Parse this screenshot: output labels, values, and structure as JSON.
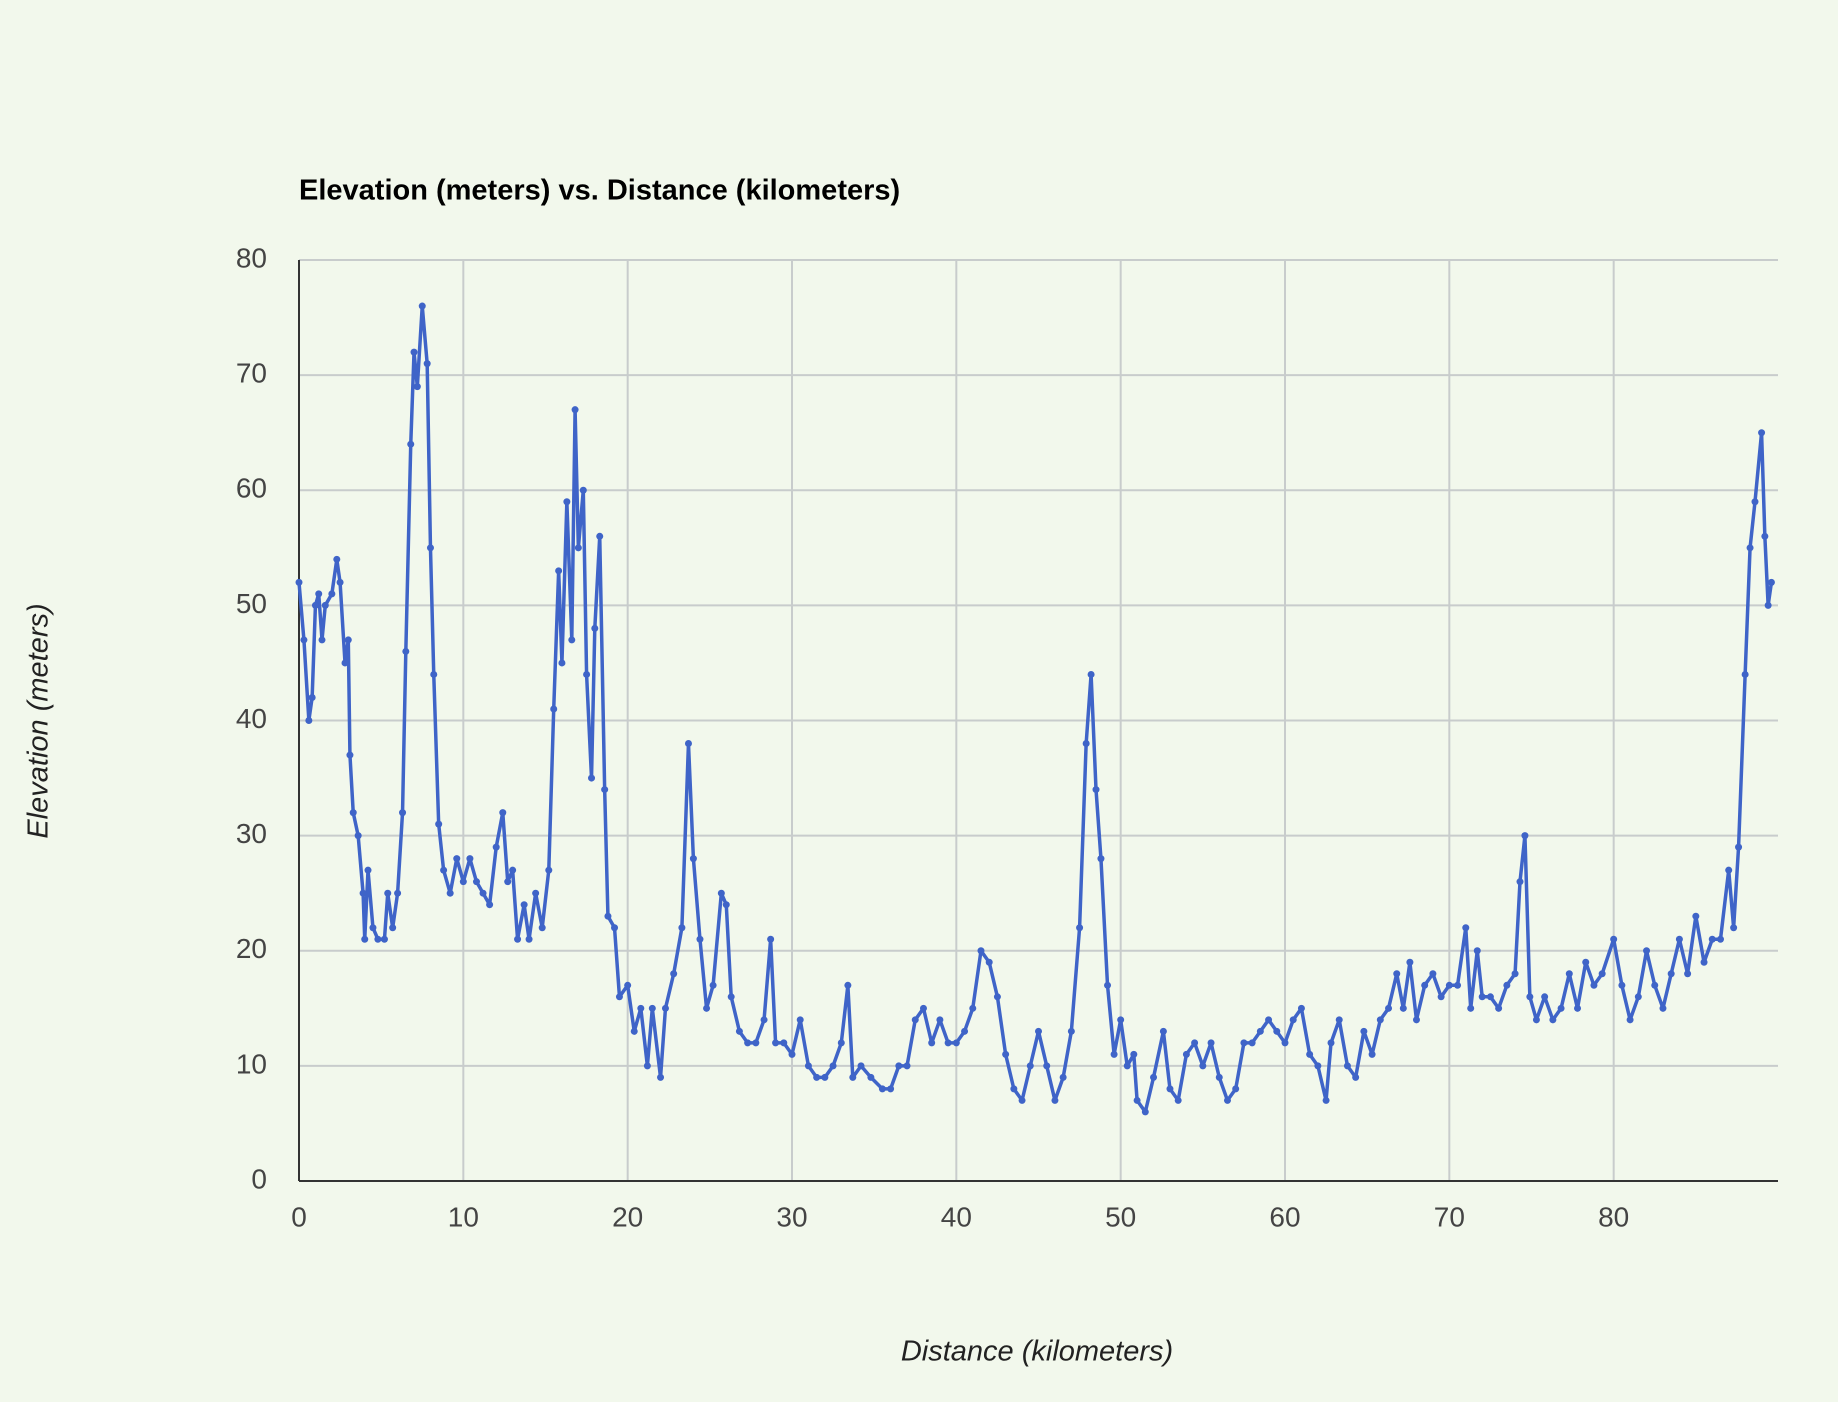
{
  "chart_data": {
    "type": "line",
    "title": "Elevation (meters) vs. Distance (kilometers)",
    "x_label": "Distance (kilometers)",
    "y_label": "Elevation (meters)",
    "xlim": [
      0,
      90
    ],
    "ylim": [
      0,
      80
    ],
    "xticks": [
      0,
      10,
      20,
      30,
      40,
      50,
      60,
      70,
      80
    ],
    "yticks": [
      0,
      10,
      20,
      30,
      40,
      50,
      60,
      70,
      80
    ],
    "grid": true,
    "markers": true,
    "x": [
      0,
      0.3,
      0.6,
      0.8,
      1,
      1.2,
      1.4,
      1.6,
      2,
      2.3,
      2.5,
      2.8,
      3,
      3.1,
      3.3,
      3.6,
      3.9,
      4,
      4.2,
      4.5,
      4.8,
      5.2,
      5.4,
      5.7,
      6,
      6.3,
      6.5,
      6.8,
      7,
      7.2,
      7.5,
      7.8,
      8,
      8.2,
      8.5,
      8.8,
      9.2,
      9.6,
      10,
      10.4,
      10.8,
      11.2,
      11.6,
      12,
      12.4,
      12.7,
      13,
      13.3,
      13.7,
      14,
      14.4,
      14.8,
      15.2,
      15.5,
      15.8,
      16,
      16.3,
      16.6,
      16.8,
      17,
      17.3,
      17.5,
      17.8,
      18,
      18.3,
      18.6,
      18.8,
      19.2,
      19.5,
      20,
      20.4,
      20.8,
      21.2,
      21.5,
      22,
      22.3,
      22.8,
      23.3,
      23.7,
      24,
      24.4,
      24.8,
      25.2,
      25.7,
      26,
      26.3,
      26.8,
      27.3,
      27.8,
      28.3,
      28.7,
      29,
      29.5,
      30,
      30.5,
      31,
      31.5,
      32,
      32.5,
      33,
      33.4,
      33.7,
      34.2,
      34.8,
      35.5,
      36,
      36.5,
      37,
      37.5,
      38,
      38.5,
      39,
      39.5,
      40,
      40.5,
      41,
      41.5,
      42,
      42.5,
      43,
      43.5,
      44,
      44.5,
      45,
      45.5,
      46,
      46.5,
      47,
      47.5,
      47.9,
      48.2,
      48.5,
      48.8,
      49.2,
      49.6,
      50,
      50.4,
      50.8,
      51,
      51.5,
      52,
      52.6,
      53,
      53.5,
      54,
      54.5,
      55,
      55.5,
      56,
      56.5,
      57,
      57.5,
      58,
      58.5,
      59,
      59.5,
      60,
      60.5,
      61,
      61.5,
      62,
      62.5,
      62.8,
      63.3,
      63.8,
      64.3,
      64.8,
      65.3,
      65.8,
      66.3,
      66.8,
      67.2,
      67.6,
      68,
      68.5,
      69,
      69.5,
      70,
      70.5,
      71,
      71.3,
      71.7,
      72,
      72.5,
      73,
      73.5,
      74,
      74.3,
      74.6,
      74.9,
      75.3,
      75.8,
      76.3,
      76.8,
      77.3,
      77.8,
      78.3,
      78.8,
      79.3,
      80,
      80.5,
      81,
      81.5,
      82,
      82.5,
      83,
      83.5,
      84,
      84.5,
      85,
      85.5,
      86,
      86.5,
      87,
      87.3,
      87.6,
      88,
      88.3,
      88.6,
      89,
      89.2,
      89.4,
      89.6
    ],
    "series": [
      {
        "name": "Elevation",
        "color": "#3f64c8",
        "values": [
          52,
          47,
          40,
          42,
          50,
          51,
          47,
          50,
          51,
          54,
          52,
          45,
          47,
          37,
          32,
          30,
          25,
          21,
          27,
          22,
          21,
          21,
          25,
          22,
          25,
          32,
          46,
          64,
          72,
          69,
          76,
          71,
          55,
          44,
          31,
          27,
          25,
          28,
          26,
          28,
          26,
          25,
          24,
          29,
          32,
          26,
          27,
          21,
          24,
          21,
          25,
          22,
          27,
          41,
          53,
          45,
          59,
          47,
          67,
          55,
          60,
          44,
          35,
          48,
          56,
          34,
          23,
          22,
          16,
          17,
          13,
          15,
          10,
          15,
          9,
          15,
          18,
          22,
          38,
          28,
          21,
          15,
          17,
          25,
          24,
          16,
          13,
          12,
          12,
          14,
          21,
          12,
          12,
          11,
          14,
          10,
          9,
          9,
          10,
          12,
          17,
          9,
          10,
          9,
          8,
          8,
          10,
          10,
          14,
          15,
          12,
          14,
          12,
          12,
          13,
          15,
          20,
          19,
          16,
          11,
          8,
          7,
          10,
          13,
          10,
          7,
          9,
          13,
          22,
          38,
          44,
          34,
          28,
          17,
          11,
          14,
          10,
          11,
          7,
          6,
          9,
          13,
          8,
          7,
          11,
          12,
          10,
          12,
          9,
          7,
          8,
          12,
          12,
          13,
          14,
          13,
          12,
          14,
          15,
          11,
          10,
          7,
          12,
          14,
          10,
          9,
          13,
          11,
          14,
          15,
          18,
          15,
          19,
          14,
          17,
          18,
          16,
          17,
          17,
          22,
          15,
          20,
          16,
          16,
          15,
          17,
          18,
          26,
          30,
          16,
          14,
          16,
          14,
          15,
          18,
          15,
          19,
          17,
          18,
          21,
          17,
          14,
          16,
          20,
          17,
          15,
          18,
          21,
          18,
          23,
          19,
          21,
          21,
          27,
          22,
          29,
          44,
          55,
          59,
          65,
          56,
          50,
          52
        ]
      }
    ]
  }
}
